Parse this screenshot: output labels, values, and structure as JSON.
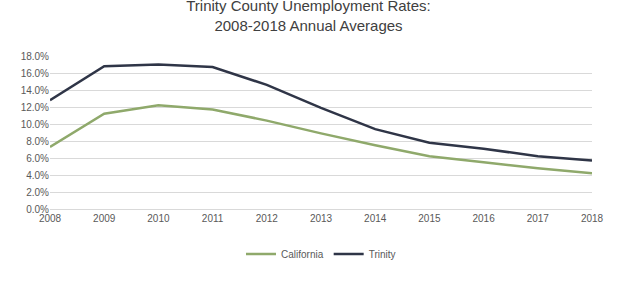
{
  "chart_data": {
    "type": "line",
    "title": "Trinity County Unemployment Rates:\n2008-2018 Annual Averages",
    "categories": [
      "2008",
      "2009",
      "2010",
      "2011",
      "2012",
      "2013",
      "2014",
      "2015",
      "2016",
      "2017",
      "2018"
    ],
    "series": [
      {
        "name": "California",
        "color": "#8fa96b",
        "values": [
          7.3,
          11.2,
          12.2,
          11.7,
          10.4,
          8.9,
          7.5,
          6.2,
          5.5,
          4.8,
          4.2
        ]
      },
      {
        "name": "Trinity",
        "color": "#2f3547",
        "values": [
          12.8,
          16.8,
          17.0,
          16.7,
          14.6,
          11.9,
          9.4,
          7.8,
          7.1,
          6.2,
          5.7
        ]
      }
    ],
    "ylim": [
      0,
      18
    ],
    "yticks": [
      {
        "value": 0,
        "label": "0.0%"
      },
      {
        "value": 2,
        "label": "2.0%"
      },
      {
        "value": 4,
        "label": "4.0%"
      },
      {
        "value": 6,
        "label": "6.0%"
      },
      {
        "value": 8,
        "label": "8.0%"
      },
      {
        "value": 10,
        "label": "10.0%"
      },
      {
        "value": 12,
        "label": "12.0%"
      },
      {
        "value": 14,
        "label": "14.0%"
      },
      {
        "value": 16,
        "label": "16.0%"
      },
      {
        "value": 18,
        "label": "18.0%"
      }
    ],
    "grid": true,
    "legend": "bottom"
  }
}
